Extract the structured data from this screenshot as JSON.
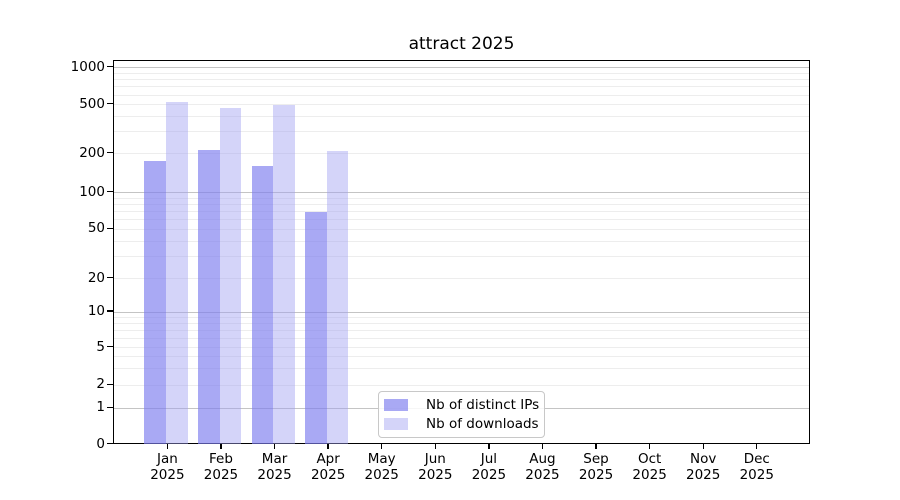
{
  "chart_data": {
    "type": "bar",
    "title": "attract 2025",
    "categories": [
      "Jan 2025",
      "Feb 2025",
      "Mar 2025",
      "Apr 2025",
      "May 2025",
      "Jun 2025",
      "Jul 2025",
      "Aug 2025",
      "Sep 2025",
      "Oct 2025",
      "Nov 2025",
      "Dec 2025"
    ],
    "x_tick_month_line": [
      "Jan",
      "Feb",
      "Mar",
      "Apr",
      "May",
      "Jun",
      "Jul",
      "Aug",
      "Sep",
      "Oct",
      "Nov",
      "Dec"
    ],
    "x_tick_year_line": "2025",
    "series": [
      {
        "name": "Nb of distinct IPs",
        "color": "rgba(125,125,238,0.66)",
        "values": [
          175,
          215,
          160,
          69,
          null,
          null,
          null,
          null,
          null,
          null,
          null,
          null
        ]
      },
      {
        "name": "Nb of downloads",
        "color": "rgba(160,160,242,0.45)",
        "values": [
          530,
          470,
          500,
          208,
          null,
          null,
          null,
          null,
          null,
          null,
          null,
          null
        ]
      }
    ],
    "yscale": "symlog",
    "ylim": [
      0,
      1000
    ],
    "yticks": [
      0,
      1,
      2,
      5,
      10,
      20,
      50,
      100,
      200,
      500,
      1000
    ],
    "grid": "horizontal major+minor, no vertical",
    "legend_position": "lower center"
  },
  "colors": {
    "bar_distinct_ips": "rgba(125,125,238,0.66)",
    "bar_downloads": "rgba(160,160,242,0.45)",
    "grid_minor": "#ededed",
    "grid_major": "#c4c4c4",
    "spine": "#000000",
    "legend_border": "#c8c8c8"
  }
}
